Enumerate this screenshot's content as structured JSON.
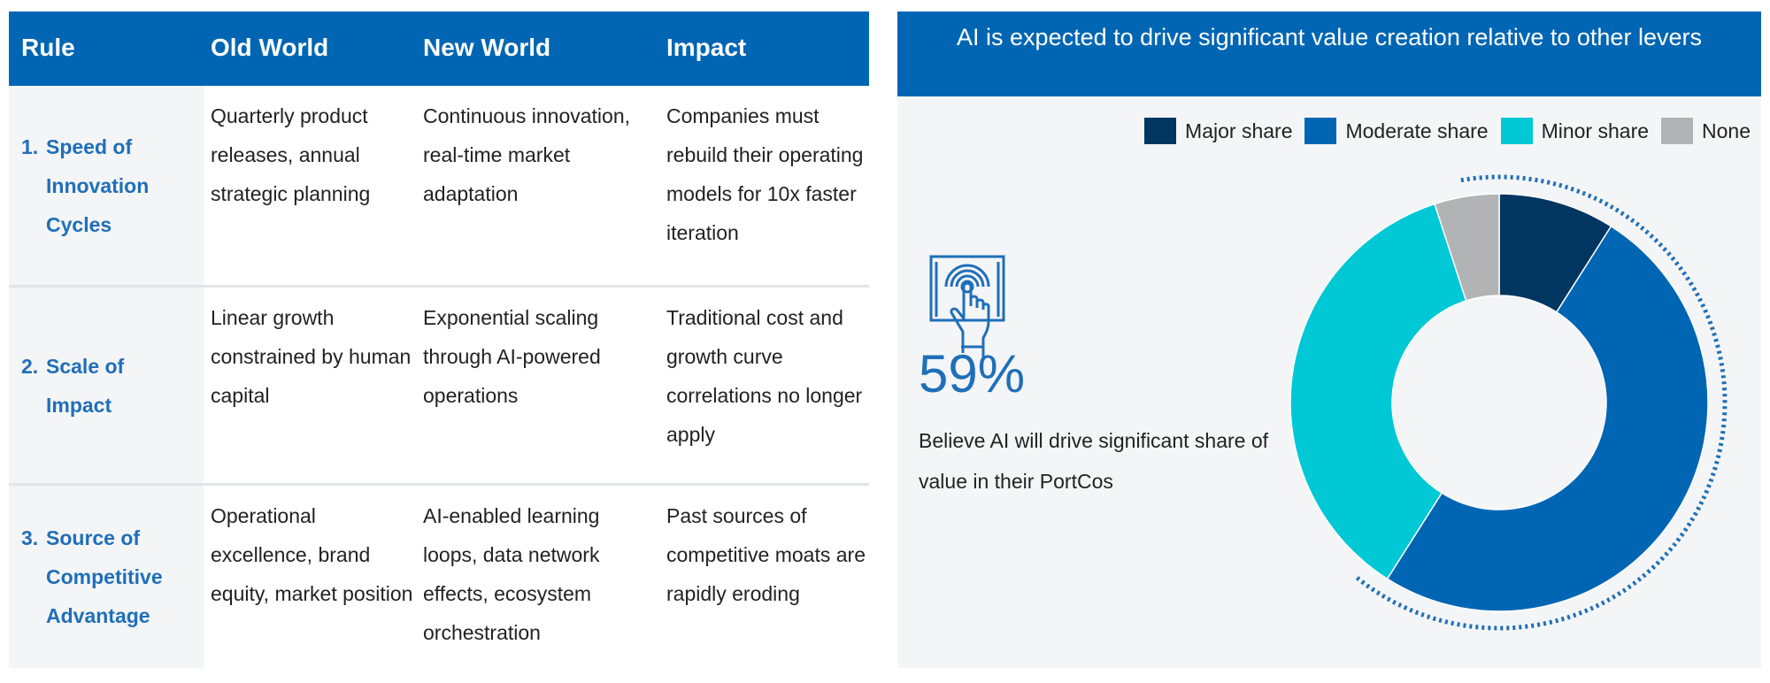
{
  "table": {
    "headers": [
      "Rule",
      "Old World",
      "New World",
      "Impact"
    ],
    "rows": [
      {
        "num": "1.",
        "rule": [
          "Speed of",
          "Innovation",
          "Cycles"
        ],
        "old": "Quarterly product releases, annual strategic planning",
        "new": "Continuous innovation, real-time market adaptation",
        "impact": "Companies must rebuild their operating models for 10x faster iteration"
      },
      {
        "num": "2.",
        "rule": [
          "Scale of",
          "Impact"
        ],
        "old": "Linear growth constrained by human capital",
        "new": "Exponential scaling through AI-powered operations",
        "impact": "Traditional cost and growth curve correlations no longer apply"
      },
      {
        "num": "3.",
        "rule": [
          "Source of",
          "Competitive",
          "Advantage"
        ],
        "old": "Operational excellence, brand equity, market position",
        "new": "AI-enabled learning loops, data network effects, ecosystem orchestration",
        "impact": "Past sources of competitive moats are rapidly eroding"
      }
    ],
    "colors": {
      "header": "#0066b3",
      "rule_text": "#1f6fb8"
    }
  },
  "panel": {
    "title": "AI is expected to drive significant value creation relative to other levers",
    "stat": "59%",
    "caption": "Believe AI will drive significant share of value in their PortCos",
    "icon": "hand-tap-tablet-icon"
  },
  "chart_data": {
    "type": "pie",
    "donut": true,
    "categories": [
      "Major share",
      "Moderate share",
      "Minor share",
      "None"
    ],
    "values": [
      9,
      50,
      36,
      5
    ],
    "colors": [
      "#003660",
      "#0066b3",
      "#00c8d4",
      "#b1b3b5"
    ],
    "legend": "top-right",
    "highlight": {
      "categories": [
        "Major share",
        "Moderate share"
      ],
      "total": 59,
      "style": "dotted-arc"
    }
  }
}
